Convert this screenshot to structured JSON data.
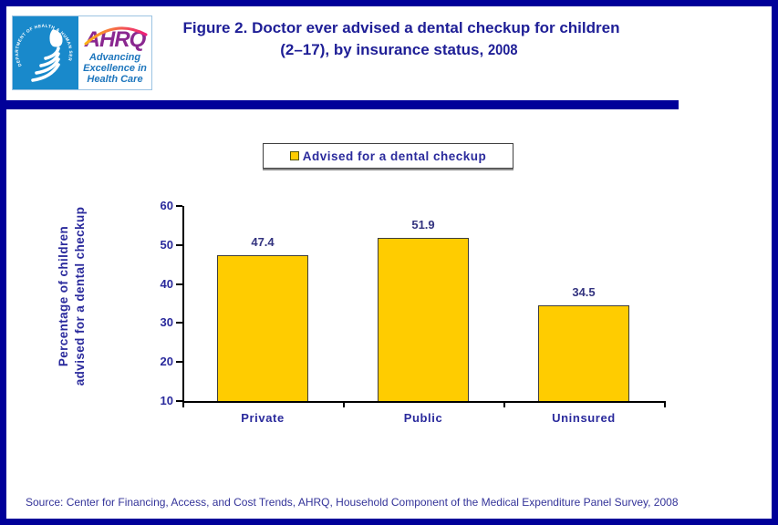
{
  "header": {
    "title_line1": "Figure 2. Doctor ever advised a dental checkup for children",
    "title_line2_prefix": "(2–17), by insurance status, ",
    "title_year": "2008",
    "logo": {
      "hhs_ring_text": "DEPARTMENT OF HEALTH & HUMAN SERVICES · USA",
      "ahrq_acronym": "AHRQ",
      "tagline_line1": "Advancing",
      "tagline_line2": "Excellence in",
      "tagline_line3": "Health Care"
    }
  },
  "chart_data": {
    "type": "bar",
    "title": "Doctor ever advised a dental checkup for children (2–17), by insurance status, 2008",
    "categories": [
      "Private",
      "Public",
      "Uninsured"
    ],
    "values": [
      47.4,
      51.9,
      34.5
    ],
    "series_label": "Advised for a dental checkup",
    "xlabel": "",
    "ylabel_lines": [
      "Percentage of children",
      "advised for a dental checkup"
    ],
    "yticks": [
      10,
      20,
      30,
      40,
      50,
      60
    ],
    "ylim": [
      10,
      60
    ],
    "grid": "off",
    "legend_position": "top",
    "bar_color": "#FFCC00",
    "data_labels": [
      "47.4",
      "51.9",
      "34.5"
    ]
  },
  "footer": {
    "source": "Source: Center for Financing, Access, and Cost Trends, AHRQ, Household Component of the Medical Expenditure Panel Survey, 2008"
  },
  "colors": {
    "frame_navy": "#000099",
    "title_navy": "#1E1E96",
    "chart_text_navy": "#2A2A9C",
    "bar_fill": "#FFCC00",
    "bar_border": "#3d3d3d",
    "hhs_blue": "#1989CB",
    "ahrq_purple": "#8A2890",
    "tagline_blue": "#1D76BD"
  }
}
